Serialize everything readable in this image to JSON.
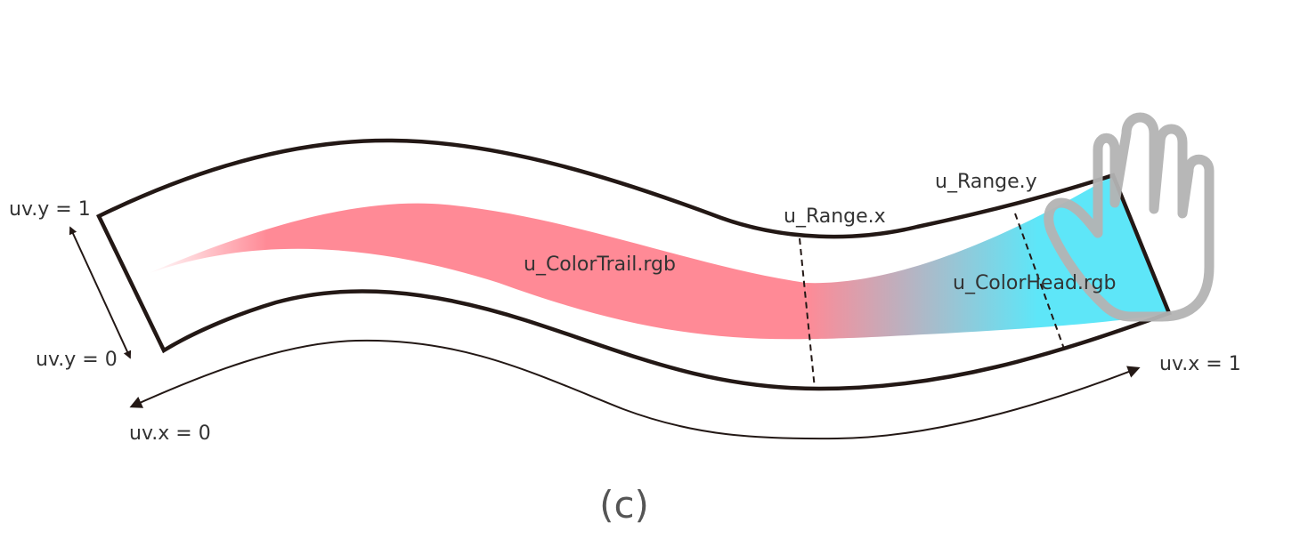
{
  "labels": {
    "uv_y_1": "uv.y = 1",
    "uv_y_0": "uv.y = 0",
    "uv_x_0": "uv.x = 0",
    "uv_x_1": "uv.x = 1",
    "range_x": "u_Range.x",
    "range_y": "u_Range.y",
    "color_trail": "u_ColorTrail.rgb",
    "color_head": "u_ColorHead.rgb"
  },
  "caption": "(c)",
  "colors": {
    "trail": "#ff8a96",
    "head": "#5ee6f8",
    "outline": "#231815",
    "hand": "#b3b3b3"
  },
  "icons": [
    "hand-icon"
  ]
}
